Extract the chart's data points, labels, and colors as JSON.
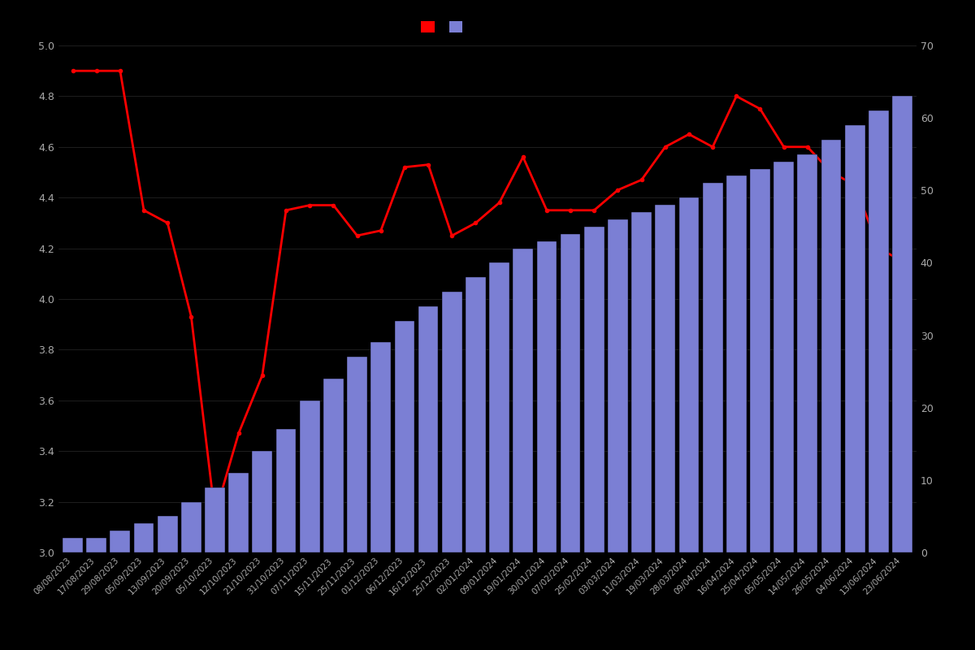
{
  "dates": [
    "08/08/2023",
    "17/08/2023",
    "29/08/2023",
    "05/09/2023",
    "13/09/2023",
    "20/09/2023",
    "05/10/2023",
    "12/10/2023",
    "21/10/2023",
    "31/10/2023",
    "07/11/2023",
    "15/11/2023",
    "25/11/2023",
    "01/12/2023",
    "06/12/2023",
    "16/12/2023",
    "25/12/2023",
    "02/01/2024",
    "09/01/2024",
    "19/01/2024",
    "30/01/2024",
    "07/02/2024",
    "25/02/2024",
    "03/03/2024",
    "11/03/2024",
    "19/03/2024",
    "28/03/2024",
    "09/04/2024",
    "16/04/2024",
    "25/04/2024",
    "05/05/2024",
    "14/05/2024",
    "26/05/2024",
    "04/06/2024",
    "13/06/2024",
    "23/06/2024"
  ],
  "bar_values": [
    2,
    2,
    3,
    4,
    5,
    7,
    9,
    11,
    14,
    17,
    21,
    24,
    27,
    29,
    32,
    34,
    36,
    38,
    40,
    42,
    43,
    44,
    45,
    46,
    47,
    48,
    49,
    51,
    52,
    53,
    54,
    55,
    57,
    59,
    61,
    63
  ],
  "line_values": [
    4.9,
    4.9,
    4.9,
    4.35,
    4.3,
    3.93,
    3.15,
    3.47,
    3.7,
    4.35,
    4.37,
    4.37,
    4.25,
    4.27,
    4.52,
    4.53,
    4.25,
    4.3,
    4.38,
    4.56,
    4.35,
    4.35,
    4.35,
    4.43,
    4.47,
    4.6,
    4.65,
    4.6,
    4.8,
    4.75,
    4.6,
    4.6,
    4.5,
    4.45,
    4.2,
    4.15
  ],
  "bar_color": "#7B7FD4",
  "bar_edge_color": "#000000",
  "line_color": "#FF0000",
  "marker_color": "#FF0000",
  "background_color": "#000000",
  "text_color": "#AAAAAA",
  "ylim_left": [
    3.0,
    5.0
  ],
  "ylim_right": [
    0,
    70
  ],
  "yticks_left": [
    3.0,
    3.2,
    3.4,
    3.6,
    3.8,
    4.0,
    4.2,
    4.4,
    4.6,
    4.8,
    5.0
  ],
  "yticks_right": [
    0,
    10,
    20,
    30,
    40,
    50,
    60,
    70
  ],
  "legend_colors": [
    "#FF0000",
    "#7B7FD4"
  ]
}
